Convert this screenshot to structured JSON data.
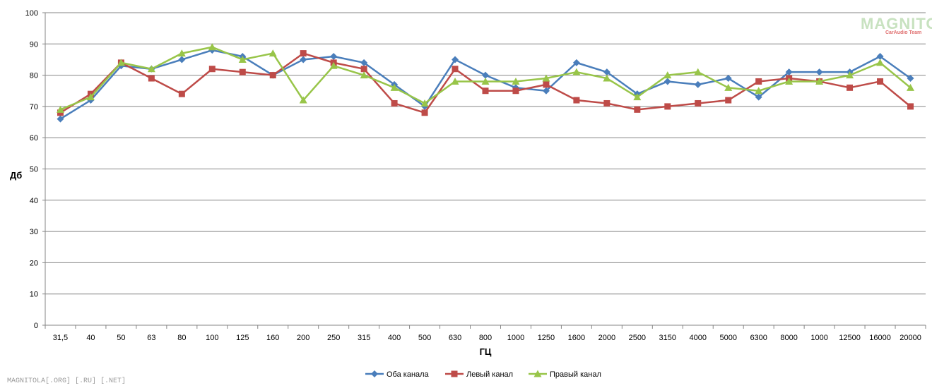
{
  "watermark": {
    "logo": "MAGNITOLA",
    "logo_sub": "CarAudio Team",
    "footer": "MAGNITOLA[.ORG] [.RU] [.NET]"
  },
  "chart_data": {
    "type": "line",
    "title": "",
    "xlabel": "ГЦ",
    "ylabel": "Дб",
    "ylim": [
      0,
      100
    ],
    "yticks": [
      0,
      10,
      20,
      30,
      40,
      50,
      60,
      70,
      80,
      90,
      100
    ],
    "grid": true,
    "legend_position": "bottom",
    "categories": [
      "31,5",
      "40",
      "50",
      "63",
      "80",
      "100",
      "125",
      "160",
      "200",
      "250",
      "315",
      "400",
      "500",
      "630",
      "800",
      "1000",
      "1250",
      "1600",
      "2000",
      "2500",
      "3150",
      "4000",
      "5000",
      "6300",
      "8000",
      "1000",
      "12500",
      "16000",
      "20000"
    ],
    "series": [
      {
        "name": "Оба канала",
        "color": "#4a7ebb",
        "marker": "diamond",
        "values": [
          66,
          72,
          83,
          82,
          85,
          88,
          86,
          80,
          85,
          86,
          84,
          77,
          70,
          85,
          80,
          76,
          75,
          84,
          81,
          74,
          78,
          77,
          79,
          73,
          81,
          81,
          81,
          86,
          79
        ]
      },
      {
        "name": "Левый канал",
        "color": "#be4b48",
        "marker": "square",
        "values": [
          68,
          74,
          84,
          79,
          74,
          82,
          81,
          80,
          87,
          84,
          82,
          71,
          68,
          82,
          75,
          75,
          77,
          72,
          71,
          69,
          70,
          71,
          72,
          78,
          79,
          78,
          76,
          78,
          70
        ]
      },
      {
        "name": "Правый канал",
        "color": "#98c549",
        "marker": "triangle",
        "values": [
          69,
          73,
          84,
          82,
          87,
          89,
          85,
          87,
          72,
          83,
          80,
          76,
          71,
          78,
          78,
          78,
          79,
          81,
          79,
          73,
          80,
          81,
          76,
          75,
          78,
          78,
          80,
          84,
          76
        ]
      }
    ]
  }
}
